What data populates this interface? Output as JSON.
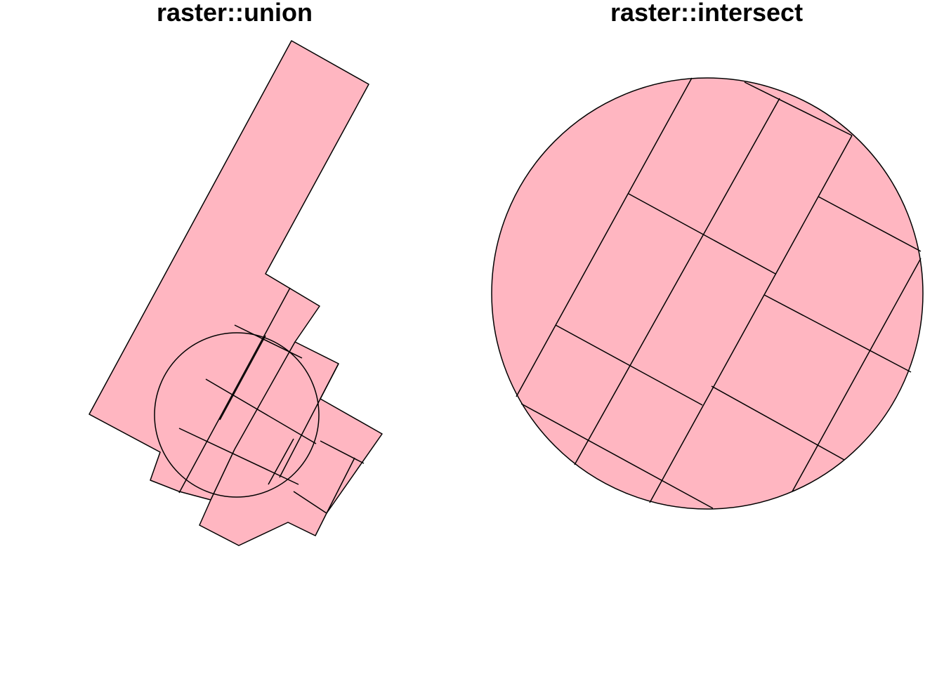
{
  "panels": [
    {
      "id": "union",
      "title": "raster::union"
    },
    {
      "id": "intersect",
      "title": "raster::intersect"
    }
  ],
  "colors": {
    "fill": "#FFB6C1",
    "stroke": "#000000",
    "background": "#FFFFFF"
  }
}
